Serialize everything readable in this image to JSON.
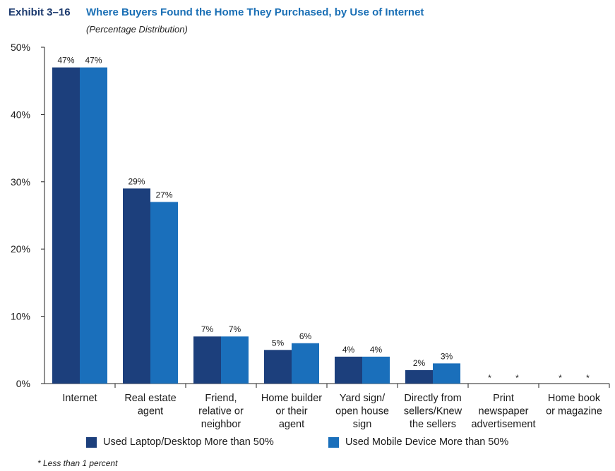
{
  "header": {
    "exhibit": "Exhibit 3–16",
    "title": "Where Buyers Found the Home They Purchased, by Use of Internet",
    "subtitle": "(Percentage Distribution)"
  },
  "chart_data": {
    "type": "bar",
    "title": "Where Buyers Found the Home They Purchased, by Use of Internet",
    "subtitle": "(Percentage Distribution)",
    "xlabel": "",
    "ylabel": "",
    "ylim": [
      0,
      50
    ],
    "yticks": [
      0,
      10,
      20,
      30,
      40,
      50
    ],
    "ytick_labels": [
      "0%",
      "10%",
      "20%",
      "30%",
      "40%",
      "50%"
    ],
    "categories": [
      [
        "Internet"
      ],
      [
        "Real estate",
        "agent"
      ],
      [
        "Friend,",
        "relative or",
        "neighbor"
      ],
      [
        "Home builder",
        "or their",
        "agent"
      ],
      [
        "Yard sign/",
        "open house",
        "sign"
      ],
      [
        "Directly from",
        "sellers/Knew",
        "the sellers"
      ],
      [
        "Print",
        "newspaper",
        "advertisement"
      ],
      [
        "Home book",
        "or magazine"
      ]
    ],
    "series": [
      {
        "name": "Used Laptop/Desktop More than 50%",
        "color": "#1c3f7c",
        "values": [
          47,
          29,
          7,
          5,
          4,
          2,
          0,
          0
        ],
        "labels": [
          "47%",
          "29%",
          "7%",
          "5%",
          "4%",
          "2%",
          "*",
          "*"
        ]
      },
      {
        "name": "Used Mobile Device More than 50%",
        "color": "#1a6fbb",
        "values": [
          47,
          27,
          7,
          6,
          4,
          3,
          0,
          0
        ],
        "labels": [
          "47%",
          "27%",
          "7%",
          "6%",
          "4%",
          "3%",
          "*",
          "*"
        ]
      }
    ],
    "legend": "bottom",
    "grid": false
  },
  "footnote": "* Less than 1 percent"
}
